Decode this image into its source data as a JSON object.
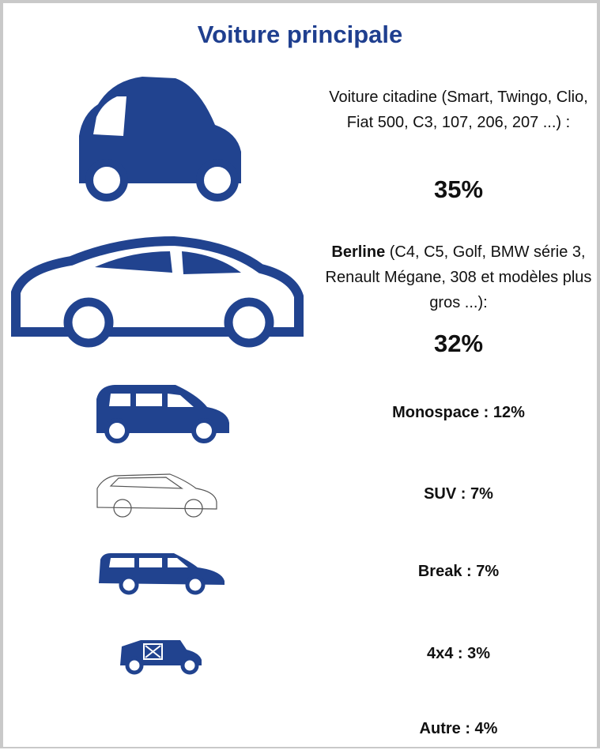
{
  "title": "Voiture principale",
  "items": [
    {
      "label": "Voiture citadine (Smart, Twingo, Clio, Fiat 500, C3, 107, 206, 207 ...) :",
      "value": "35%"
    },
    {
      "name": "Berline",
      "label": " (C4, C5, Golf, BMW série 3, Renault Mégane, 308 et modèles plus gros ...):",
      "value": "32%"
    },
    {
      "label": "Monospace : 12%"
    },
    {
      "label": "SUV : 7%"
    },
    {
      "label": "Break : 7%"
    },
    {
      "label": "4x4 : 3%"
    },
    {
      "label": "Autre : 4%"
    }
  ]
}
